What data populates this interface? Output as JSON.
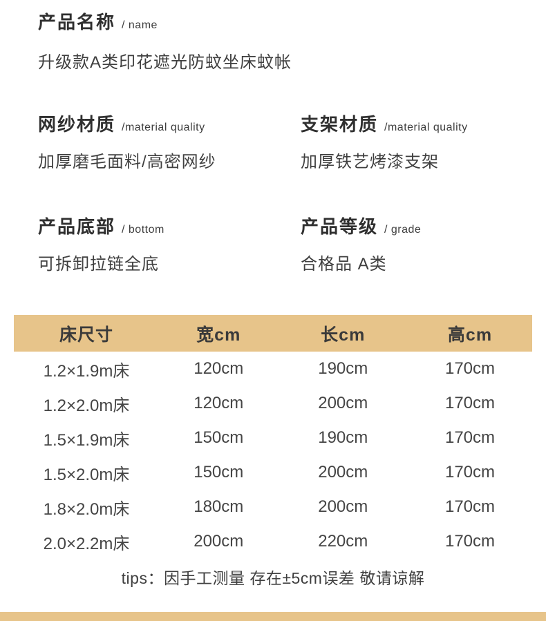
{
  "page": {
    "background": "#ffffff",
    "accent_color": "#e7c48a",
    "text_color": "#3c3c3c"
  },
  "product": {
    "name_label": "产品名称",
    "name_label_en": "/ name",
    "name_value": "升级款A类印花遮光防蚊坐床蚊帐"
  },
  "specs": [
    {
      "label": "网纱材质",
      "label_en": "/material quality",
      "value": "加厚磨毛面料/高密网纱"
    },
    {
      "label": "支架材质",
      "label_en": "/material quality",
      "value": "加厚铁艺烤漆支架"
    },
    {
      "label": "产品底部",
      "label_en": "/ bottom",
      "value": "可拆卸拉链全底"
    },
    {
      "label": "产品等级",
      "label_en": "/ grade",
      "value": "合格品 A类"
    }
  ],
  "size_table": {
    "headers": [
      "床尺寸",
      "宽cm",
      "长cm",
      "高cm"
    ],
    "rows": [
      [
        "1.2×1.9m床",
        "120cm",
        "190cm",
        "170cm"
      ],
      [
        "1.2×2.0m床",
        "120cm",
        "200cm",
        "170cm"
      ],
      [
        "1.5×1.9m床",
        "150cm",
        "190cm",
        "170cm"
      ],
      [
        "1.5×2.0m床",
        "150cm",
        "200cm",
        "170cm"
      ],
      [
        "1.8×2.0m床",
        "180cm",
        "200cm",
        "170cm"
      ],
      [
        "2.0×2.2m床",
        "200cm",
        "220cm",
        "170cm"
      ]
    ]
  },
  "tips_text": "tips：因手工测量 存在±5cm误差 敬请谅解"
}
